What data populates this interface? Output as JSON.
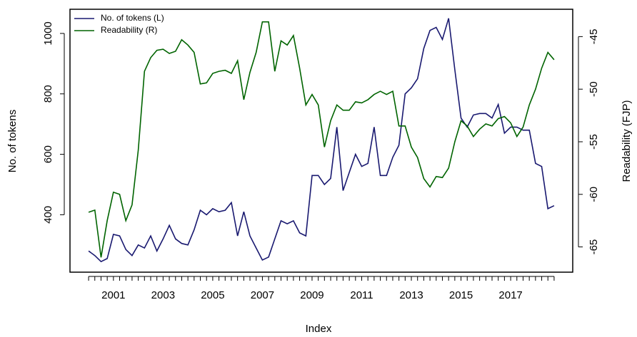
{
  "chart_data": {
    "type": "line",
    "x_label": "Index",
    "y_label": "No. of tokens",
    "y2_label": "Readability (FJP)",
    "x": [
      2000,
      2000.25,
      2000.5,
      2000.75,
      2001,
      2001.25,
      2001.5,
      2001.75,
      2002,
      2002.25,
      2002.5,
      2002.75,
      2003,
      2003.25,
      2003.5,
      2003.75,
      2004,
      2004.25,
      2004.5,
      2004.75,
      2005,
      2005.25,
      2005.5,
      2005.75,
      2006,
      2006.25,
      2006.5,
      2006.75,
      2007,
      2007.25,
      2007.5,
      2007.75,
      2008,
      2008.25,
      2008.5,
      2008.75,
      2009,
      2009.25,
      2009.5,
      2009.75,
      2010,
      2010.25,
      2010.5,
      2010.75,
      2011,
      2011.25,
      2011.5,
      2011.75,
      2012,
      2012.25,
      2012.5,
      2012.75,
      2013,
      2013.25,
      2013.5,
      2013.75,
      2014,
      2014.25,
      2014.5,
      2014.75,
      2015,
      2015.25,
      2015.5,
      2015.75,
      2016,
      2016.25,
      2016.5,
      2016.75,
      2017,
      2017.25,
      2017.5,
      2017.75,
      2018,
      2018.25,
      2018.5,
      2018.75
    ],
    "series": [
      {
        "name": "No. of tokens (L)",
        "color": "#191970",
        "axis": "y",
        "values": [
          280,
          265,
          245,
          255,
          335,
          330,
          285,
          265,
          300,
          290,
          330,
          280,
          320,
          365,
          320,
          305,
          300,
          350,
          415,
          400,
          420,
          410,
          415,
          440,
          330,
          410,
          330,
          290,
          250,
          260,
          320,
          380,
          370,
          380,
          340,
          330,
          530,
          530,
          500,
          520,
          690,
          480,
          540,
          600,
          560,
          570,
          690,
          530,
          530,
          590,
          630,
          800,
          820,
          850,
          950,
          1010,
          1020,
          980,
          1050,
          880,
          720,
          690,
          730,
          735,
          735,
          720,
          765,
          670,
          690,
          690,
          680,
          680,
          570,
          560,
          420,
          430
        ]
      },
      {
        "name": "Readability (R)",
        "color": "#006400",
        "axis": "y2",
        "values": [
          -61.7,
          -61.5,
          -66,
          -62.5,
          -59.8,
          -60,
          -62.5,
          -61,
          -55.8,
          -48.3,
          -47,
          -46.3,
          -46.2,
          -46.6,
          -46.4,
          -45.3,
          -45.8,
          -46.5,
          -49.5,
          -49.4,
          -48.5,
          -48.3,
          -48.2,
          -48.5,
          -47.3,
          -51,
          -48.4,
          -46.5,
          -43.6,
          -43.6,
          -48.3,
          -45.4,
          -45.8,
          -44.9,
          -48,
          -51.5,
          -50.5,
          -51.5,
          -55.5,
          -53,
          -51.5,
          -52,
          -52,
          -51.2,
          -51.3,
          -51,
          -50.5,
          -50.2,
          -50.5,
          -50.2,
          -53.5,
          -53.5,
          -55.5,
          -56.5,
          -58.5,
          -59.3,
          -58.3,
          -58.4,
          -57.5,
          -55,
          -53,
          -53.5,
          -54.5,
          -53.8,
          -53.3,
          -53.5,
          -52.8,
          -52.6,
          -53.2,
          -54.5,
          -53.6,
          -51.5,
          -50,
          -48,
          -46.5,
          -47.2
        ]
      }
    ],
    "xlim": [
      1999.25,
      2019.5
    ],
    "xticks": [
      2001,
      2003,
      2005,
      2007,
      2009,
      2011,
      2013,
      2015,
      2017
    ],
    "ylim": [
      210,
      1080
    ],
    "yticks": [
      400,
      600,
      800,
      1000
    ],
    "y2lim": [
      -67.4,
      -42.4
    ],
    "y2ticks": [
      -65,
      -60,
      -55,
      -50,
      -45
    ],
    "legend": "topleft"
  }
}
